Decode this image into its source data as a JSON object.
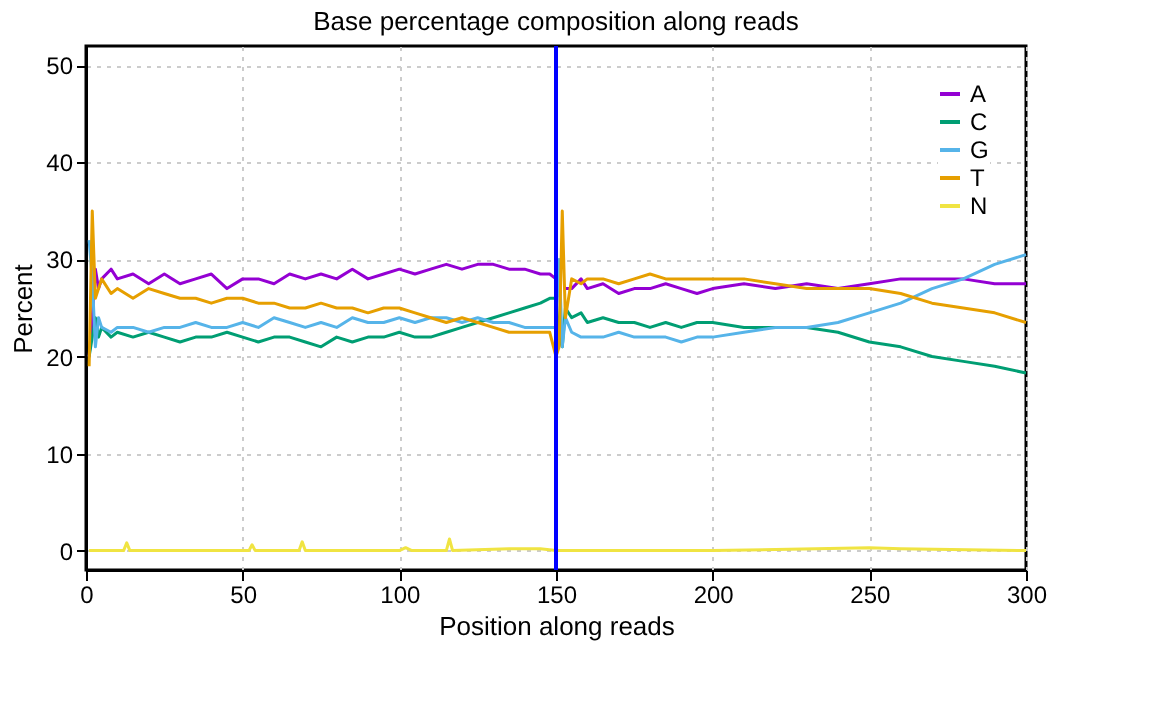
{
  "chart_data": {
    "type": "line",
    "title": "Base percentage composition along reads",
    "xlabel": "Position along reads",
    "ylabel": "Percent",
    "xlim": [
      0,
      300
    ],
    "ylim": [
      -2,
      52
    ],
    "xticks": [
      0,
      50,
      100,
      150,
      200,
      250,
      300
    ],
    "yticks": [
      0,
      10,
      20,
      30,
      40,
      50
    ],
    "grid": true,
    "legend": "top right",
    "marker": "none",
    "line_style": "solid",
    "series": [
      {
        "name": "A",
        "color": "#9400d3",
        "x": [
          1,
          2,
          3,
          4,
          5,
          8,
          10,
          15,
          20,
          25,
          30,
          35,
          40,
          45,
          50,
          55,
          60,
          65,
          70,
          75,
          80,
          85,
          90,
          95,
          100,
          105,
          110,
          115,
          120,
          125,
          130,
          135,
          140,
          145,
          148,
          150,
          151,
          152,
          153,
          155,
          158,
          160,
          165,
          170,
          175,
          180,
          185,
          190,
          195,
          200,
          210,
          220,
          230,
          240,
          250,
          260,
          270,
          280,
          290,
          300
        ],
        "values": [
          20,
          24,
          29,
          27,
          28,
          29,
          28,
          28.5,
          27.5,
          28.5,
          27.5,
          28,
          28.5,
          27,
          28,
          28,
          27.5,
          28.5,
          28,
          28.5,
          28,
          29,
          28,
          28.5,
          29,
          28.5,
          29,
          29.5,
          29,
          29.5,
          29.5,
          29,
          29,
          28.5,
          28.5,
          28,
          null,
          null,
          27,
          27,
          28,
          27,
          27.5,
          26.5,
          27,
          27,
          27.5,
          27,
          26.5,
          27,
          27.5,
          27,
          27.5,
          27,
          27.5,
          28,
          28,
          28,
          27.5,
          27.5
        ]
      },
      {
        "name": "C",
        "color": "#009e73",
        "x": [
          1,
          2,
          3,
          4,
          5,
          8,
          10,
          15,
          20,
          25,
          30,
          35,
          40,
          45,
          50,
          55,
          60,
          65,
          70,
          75,
          80,
          85,
          90,
          95,
          100,
          105,
          110,
          115,
          120,
          125,
          130,
          135,
          140,
          145,
          148,
          150,
          151,
          152,
          153,
          155,
          158,
          160,
          165,
          170,
          175,
          180,
          185,
          190,
          195,
          200,
          210,
          220,
          230,
          240,
          250,
          260,
          270,
          280,
          290,
          300
        ],
        "values": [
          20,
          22,
          24,
          22,
          23,
          22,
          22.5,
          22,
          22.5,
          22,
          21.5,
          22,
          22,
          22.5,
          22,
          21.5,
          22,
          22,
          21.5,
          21,
          22,
          21.5,
          22,
          22,
          22.5,
          22,
          22,
          22.5,
          23,
          23.5,
          24,
          24.5,
          25,
          25.5,
          26,
          26,
          22,
          21,
          25,
          24,
          24.5,
          23.5,
          24,
          23.5,
          23.5,
          23,
          23.5,
          23,
          23.5,
          23.5,
          23,
          23,
          23,
          22.5,
          21.5,
          21,
          20,
          19.5,
          19,
          18.3
        ]
      },
      {
        "name": "G",
        "color": "#56b4e9",
        "x": [
          1,
          2,
          3,
          4,
          5,
          8,
          10,
          15,
          20,
          25,
          30,
          35,
          40,
          45,
          50,
          55,
          60,
          65,
          70,
          75,
          80,
          85,
          90,
          95,
          100,
          105,
          110,
          115,
          120,
          125,
          130,
          135,
          140,
          145,
          148,
          150,
          151,
          152,
          153,
          155,
          158,
          160,
          165,
          170,
          175,
          180,
          185,
          190,
          195,
          200,
          210,
          220,
          230,
          240,
          250,
          260,
          270,
          280,
          290,
          300
        ],
        "values": [
          32,
          28,
          21,
          24,
          23,
          22.5,
          23,
          23,
          22.5,
          23,
          23,
          23.5,
          23,
          23,
          23.5,
          23,
          24,
          23.5,
          23,
          23.5,
          23,
          24,
          23.5,
          23.5,
          24,
          23.5,
          24,
          24,
          23.5,
          24,
          23.5,
          23.5,
          23,
          23,
          23,
          23,
          30,
          21,
          24,
          22.5,
          22,
          22,
          22,
          22.5,
          22,
          22,
          22,
          21.5,
          22,
          22,
          22.5,
          23,
          23,
          23.5,
          24.5,
          25.5,
          27,
          28,
          29.5,
          30.5
        ]
      },
      {
        "name": "T",
        "color": "#e69f00",
        "x": [
          1,
          2,
          3,
          4,
          5,
          8,
          10,
          15,
          20,
          25,
          30,
          35,
          40,
          45,
          50,
          55,
          60,
          65,
          70,
          75,
          80,
          85,
          90,
          95,
          100,
          105,
          110,
          115,
          120,
          125,
          130,
          135,
          140,
          145,
          148,
          150,
          151,
          152,
          153,
          155,
          158,
          160,
          165,
          170,
          175,
          180,
          185,
          190,
          195,
          200,
          210,
          220,
          230,
          240,
          250,
          260,
          270,
          280,
          290,
          300
        ],
        "values": [
          19,
          35,
          26,
          27,
          28,
          26.5,
          27,
          26,
          27,
          26.5,
          26,
          26,
          25.5,
          26,
          26,
          25.5,
          25.5,
          25,
          25,
          25.5,
          25,
          25,
          24.5,
          25,
          25,
          24.5,
          24,
          23.5,
          24,
          23.5,
          23,
          22.5,
          22.5,
          22.5,
          22.5,
          20,
          21,
          35,
          24,
          28,
          27.5,
          28,
          28,
          27.5,
          28,
          28.5,
          28,
          28,
          28,
          28,
          28,
          27.5,
          27,
          27,
          27,
          26.5,
          25.5,
          25,
          24.5,
          23.5
        ]
      },
      {
        "name": "N",
        "color": "#f0e442",
        "x": [
          1,
          10,
          12,
          13,
          14,
          20,
          50,
          52,
          53,
          54,
          68,
          69,
          70,
          100,
          102,
          104,
          115,
          116,
          117,
          135,
          145,
          150,
          160,
          200,
          250,
          260,
          300
        ],
        "values": [
          0,
          0,
          0,
          0.8,
          0,
          0,
          0,
          0,
          0.6,
          0,
          0,
          0.9,
          0,
          0,
          0.3,
          0,
          0,
          1.2,
          0,
          0.2,
          0.2,
          0,
          0,
          0,
          0.3,
          0.2,
          0
        ]
      }
    ],
    "ref_lines": [
      {
        "axis": "x",
        "value": 150,
        "color": "#0000ff"
      }
    ]
  }
}
